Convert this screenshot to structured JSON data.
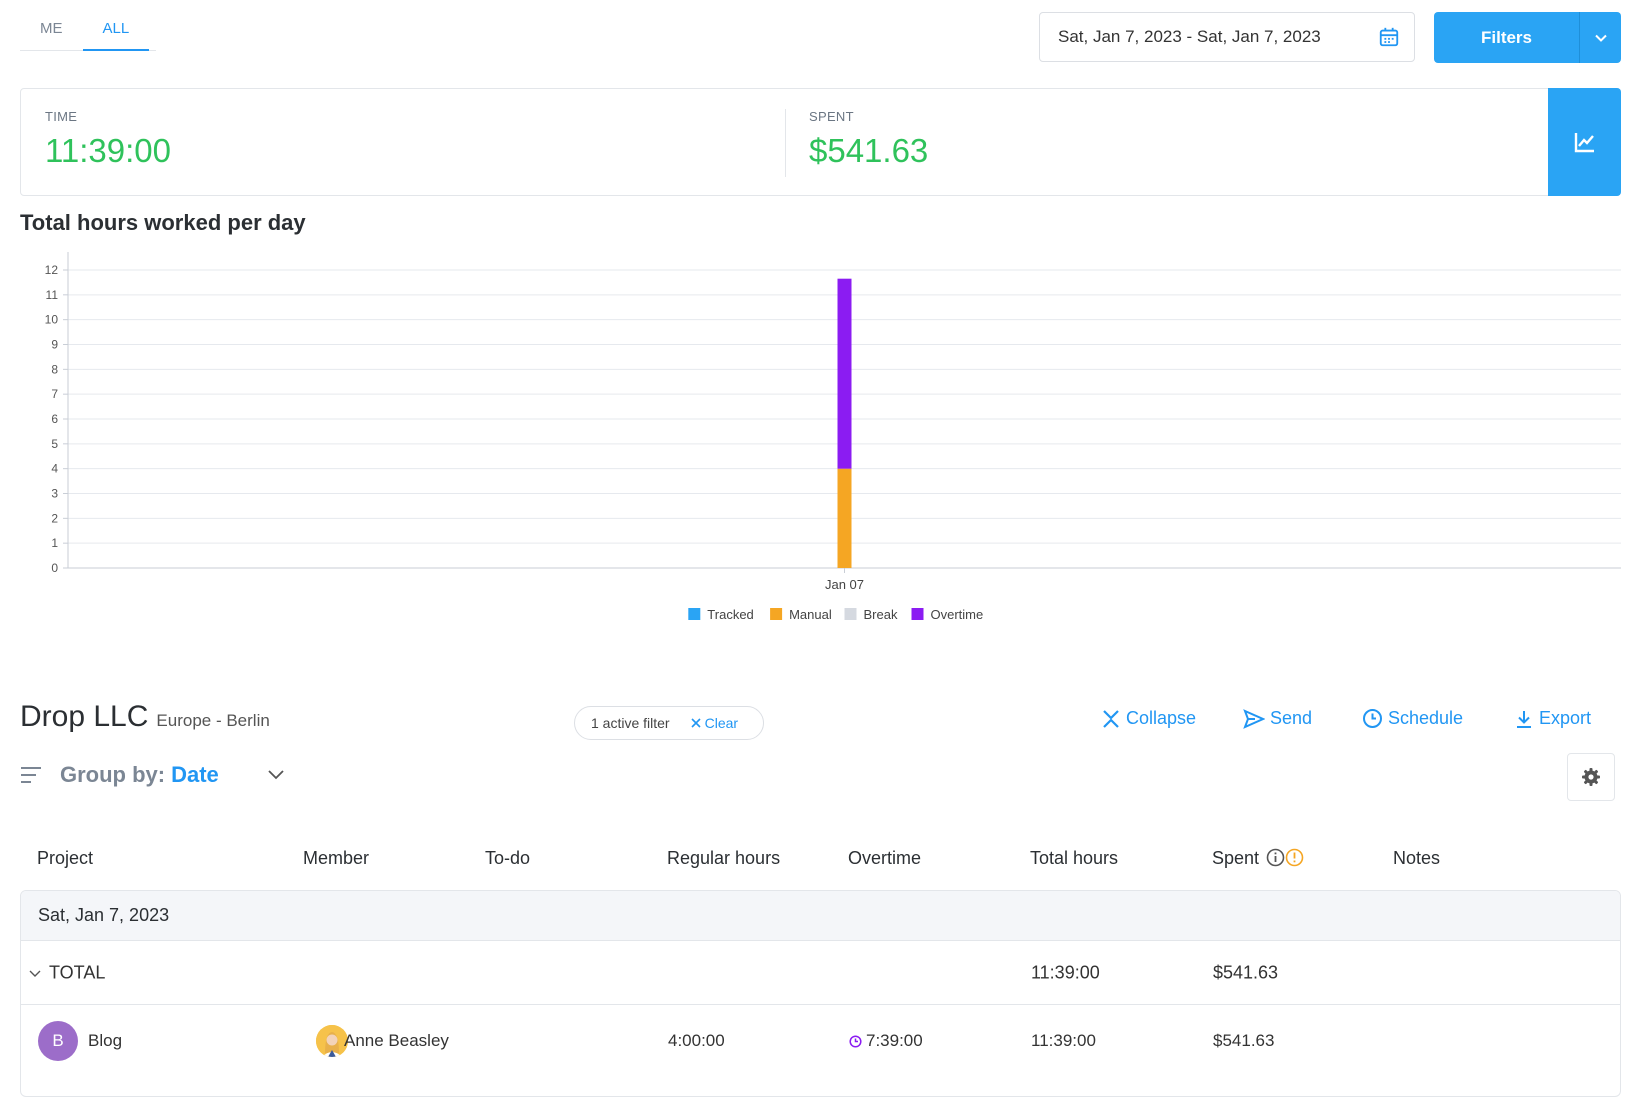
{
  "tabs": [
    {
      "label": "ME",
      "active": false
    },
    {
      "label": "ALL",
      "active": true
    }
  ],
  "date_range": {
    "value": "Sat, Jan 7, 2023 - Sat, Jan 7, 2023",
    "icon": "calendar-icon"
  },
  "filters_button": {
    "label": "Filters",
    "icon": "chevron-down-icon"
  },
  "summary": {
    "time_label": "TIME",
    "time_value": "11:39:00",
    "spent_label": "SPENT",
    "spent_value": "$541.63",
    "value_color": "#2fc25b",
    "toggle_icon": "line-chart-icon"
  },
  "chart_title": "Total hours worked per day",
  "chart_data": {
    "type": "bar",
    "stacked": true,
    "categories": [
      "Jan 07"
    ],
    "series": [
      {
        "name": "Tracked",
        "color": "#2aa4f4",
        "values": [
          0
        ]
      },
      {
        "name": "Manual",
        "color": "#f5a623",
        "values": [
          4
        ]
      },
      {
        "name": "Break",
        "color": "#d5d9e0",
        "values": [
          0
        ]
      },
      {
        "name": "Overtime",
        "color": "#8b1cf2",
        "values": [
          7.65
        ]
      }
    ],
    "ylim": [
      0,
      12
    ],
    "yticks": [
      "0",
      "1",
      "2",
      "3",
      "4",
      "5",
      "6",
      "7",
      "8",
      "9",
      "10",
      "11",
      "12"
    ],
    "grid": true,
    "legend_position": "bottom"
  },
  "company": {
    "name": "Drop LLC",
    "location": "Europe - Berlin"
  },
  "active_filter": {
    "label": "1 active filter",
    "clear_label": "Clear"
  },
  "actions": {
    "collapse": "Collapse",
    "send": "Send",
    "schedule": "Schedule",
    "export": "Export"
  },
  "group_by": {
    "label": "Group by:",
    "value": "Date"
  },
  "table": {
    "headers": {
      "project": "Project",
      "member": "Member",
      "todo": "To-do",
      "regular": "Regular hours",
      "overtime": "Overtime",
      "total": "Total hours",
      "spent": "Spent",
      "notes": "Notes"
    },
    "group_date": "Sat, Jan 7, 2023",
    "total_row": {
      "label": "TOTAL",
      "total_hours": "11:39:00",
      "spent": "$541.63"
    },
    "rows": [
      {
        "project_initial": "B",
        "project": "Blog",
        "member": "Anne Beasley",
        "regular_hours": "4:00:00",
        "overtime": "7:39:00",
        "total_hours": "11:39:00",
        "spent": "$541.63"
      }
    ]
  }
}
